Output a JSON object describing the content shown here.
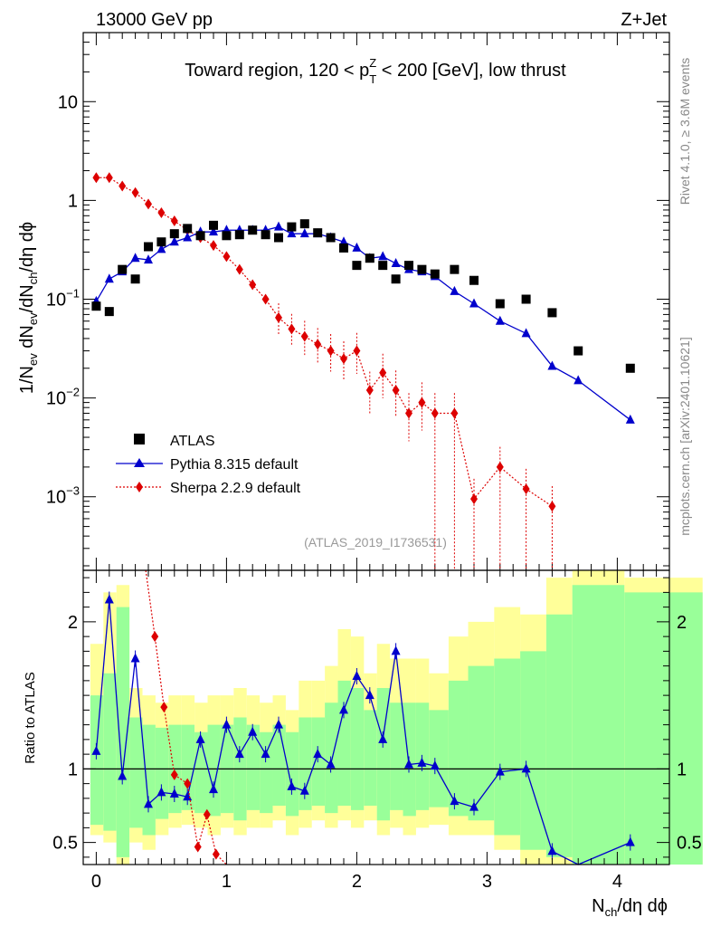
{
  "header": {
    "left": "13000 GeV pp",
    "right": "Z+Jet"
  },
  "side_labels": {
    "rivet": "Rivet 4.1.0, ≥ 3.6M events",
    "mcplots": "mcplots.cern.ch [arXiv:2401.10621]"
  },
  "chart_data": [
    {
      "type": "scatter",
      "title": "Toward region, 120 < p_T^Z < 200 [GeV], low thrust",
      "xlabel": "N_ch/dη dϕ",
      "ylabel": "1/N_ev dN_ev/dN_ch/dη dϕ",
      "yscale": "log",
      "xlim": [
        -0.1,
        4.4
      ],
      "ylim": [
        0.00018,
        50
      ],
      "yticks": [
        "10^-3",
        "10^-2",
        "10^-1",
        "1",
        "10"
      ],
      "xticks": [
        "0",
        "1",
        "2",
        "3",
        "4"
      ],
      "analysis_label": "(ATLAS_2019_I1736531)",
      "legend": [
        "ATLAS",
        "Pythia 8.315 default",
        "Sherpa 2.2.9 default"
      ],
      "legend_position": "bottom-left",
      "series": [
        {
          "name": "ATLAS",
          "style": "black-square",
          "color": "#000000",
          "x": [
            0.0,
            0.1,
            0.2,
            0.3,
            0.4,
            0.5,
            0.6,
            0.7,
            0.8,
            0.9,
            1.0,
            1.1,
            1.2,
            1.3,
            1.4,
            1.5,
            1.6,
            1.7,
            1.8,
            1.9,
            2.0,
            2.1,
            2.2,
            2.3,
            2.4,
            2.5,
            2.6,
            2.75,
            2.9,
            3.1,
            3.3,
            3.5,
            3.7,
            4.1
          ],
          "y": [
            0.085,
            0.075,
            0.2,
            0.16,
            0.34,
            0.38,
            0.46,
            0.52,
            0.44,
            0.56,
            0.44,
            0.45,
            0.5,
            0.45,
            0.42,
            0.54,
            0.58,
            0.47,
            0.42,
            0.33,
            0.22,
            0.26,
            0.22,
            0.16,
            0.22,
            0.2,
            0.18,
            0.2,
            0.155,
            0.09,
            0.1,
            0.073,
            0.03,
            0.02
          ]
        },
        {
          "name": "Pythia 8.315 default",
          "style": "blue-triangle-line",
          "color": "#0000cc",
          "x": [
            0.0,
            0.1,
            0.2,
            0.3,
            0.4,
            0.5,
            0.6,
            0.7,
            0.8,
            0.9,
            1.0,
            1.1,
            1.2,
            1.3,
            1.4,
            1.5,
            1.6,
            1.7,
            1.8,
            1.9,
            2.0,
            2.1,
            2.2,
            2.3,
            2.4,
            2.5,
            2.6,
            2.75,
            2.9,
            3.1,
            3.3,
            3.5,
            3.7,
            4.1
          ],
          "y": [
            0.095,
            0.16,
            0.19,
            0.26,
            0.25,
            0.32,
            0.38,
            0.42,
            0.48,
            0.48,
            0.5,
            0.5,
            0.5,
            0.5,
            0.54,
            0.46,
            0.46,
            0.46,
            0.42,
            0.38,
            0.33,
            0.26,
            0.27,
            0.23,
            0.2,
            0.19,
            0.17,
            0.12,
            0.09,
            0.06,
            0.045,
            0.021,
            0.015,
            0.006
          ]
        },
        {
          "name": "Sherpa 2.2.9 default",
          "style": "red-diamond-dotted",
          "color": "#dd0000",
          "x": [
            0.0,
            0.1,
            0.2,
            0.3,
            0.4,
            0.5,
            0.6,
            0.7,
            0.8,
            0.9,
            1.0,
            1.1,
            1.2,
            1.3,
            1.4,
            1.5,
            1.6,
            1.7,
            1.8,
            1.9,
            2.0,
            2.1,
            2.2,
            2.3,
            2.4,
            2.5,
            2.6,
            2.75,
            2.9,
            3.1,
            3.3,
            3.5
          ],
          "y": [
            1.7,
            1.7,
            1.4,
            1.2,
            0.92,
            0.75,
            0.62,
            0.5,
            0.42,
            0.35,
            0.27,
            0.2,
            0.14,
            0.1,
            0.065,
            0.05,
            0.042,
            0.035,
            0.03,
            0.025,
            0.03,
            0.012,
            0.018,
            0.012,
            0.007,
            0.009,
            0.007,
            0.007,
            0.00095,
            0.002,
            0.0012,
            0.0008
          ]
        }
      ]
    },
    {
      "type": "line",
      "ylabel": "Ratio to ATLAS",
      "xlabel": "N_ch/dη dϕ",
      "xlim": [
        -0.1,
        4.4
      ],
      "ylim": [
        0.35,
        2.35
      ],
      "yticks": [
        "0.5",
        "1",
        "2"
      ],
      "reference_line": 1,
      "band_colors": {
        "inner": "#99ff99",
        "outer": "#ffff99"
      },
      "series": [
        {
          "name": "Pythia 8.315 default / ATLAS",
          "color": "#0000cc",
          "x": [
            0.0,
            0.1,
            0.2,
            0.3,
            0.4,
            0.5,
            0.6,
            0.7,
            0.8,
            0.9,
            1.0,
            1.1,
            1.2,
            1.3,
            1.4,
            1.5,
            1.6,
            1.7,
            1.8,
            1.9,
            2.0,
            2.1,
            2.2,
            2.3,
            2.4,
            2.5,
            2.6,
            2.75,
            2.9,
            3.1,
            3.3,
            3.5,
            3.7,
            4.1
          ],
          "y": [
            1.12,
            2.15,
            0.95,
            1.75,
            0.76,
            0.84,
            0.83,
            0.81,
            1.2,
            0.86,
            1.3,
            1.1,
            1.25,
            1.1,
            1.3,
            0.88,
            0.85,
            1.1,
            1.03,
            1.4,
            1.63,
            1.5,
            1.2,
            1.8,
            1.03,
            1.04,
            1.02,
            0.78,
            0.74,
            0.98,
            1.0,
            0.44,
            0.2,
            0.5
          ]
        },
        {
          "name": "Sherpa 2.2.9 default / ATLAS",
          "color": "#dd0000",
          "x": [
            0.45,
            0.52,
            0.6,
            0.7,
            0.78,
            0.85,
            0.92
          ],
          "y": [
            1.9,
            1.42,
            0.96,
            0.9,
            0.47,
            0.69,
            0.42
          ]
        }
      ]
    }
  ]
}
